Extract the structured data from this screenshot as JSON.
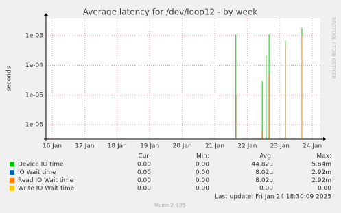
{
  "chart_data": {
    "type": "spike",
    "title": "Average latency for /dev/loop12 - by week",
    "y_label": "seconds",
    "side_label": "RRDTOOL / TOBI OETIKER",
    "footer": "Last update: Fri Jan 24 18:30:09 2025",
    "credit": "Munin 2.0.75",
    "log_scale": true,
    "grid": true,
    "xlim": [
      15.81,
      24.25
    ],
    "xticks": [
      {
        "value": 16,
        "label": "16 Jan"
      },
      {
        "value": 17,
        "label": "17 Jan"
      },
      {
        "value": 18,
        "label": "18 Jan"
      },
      {
        "value": 19,
        "label": "19 Jan"
      },
      {
        "value": 20,
        "label": "20 Jan"
      },
      {
        "value": 21,
        "label": "21 Jan"
      },
      {
        "value": 22,
        "label": "22 Jan"
      },
      {
        "value": 23,
        "label": "23 Jan"
      },
      {
        "value": 24,
        "label": "24 Jan"
      }
    ],
    "ylim": [
      3.3e-07,
      0.0038
    ],
    "yticks": [
      {
        "value": 1e-06,
        "label": "1e-06"
      },
      {
        "value": 1e-05,
        "label": "1e-05"
      },
      {
        "value": 0.0001,
        "label": "1e-04"
      },
      {
        "value": 0.001,
        "label": "1e-03"
      }
    ],
    "legend_headers": [
      "Cur:",
      "Min:",
      "Avg:",
      "Max:"
    ],
    "x": [
      21.65,
      22.46,
      22.58,
      22.67,
      23.17,
      23.68
    ],
    "series": [
      {
        "name": "Device IO time",
        "color": "#00cc00",
        "values": [
          0.0011,
          3e-05,
          0.00022,
          0.0011,
          0.0007,
          0.0018
        ],
        "stats": [
          "0.00",
          "0.00",
          "44.82u",
          "5.84m"
        ]
      },
      {
        "name": "IO Wait time",
        "color": "#0066b3",
        "values": [
          1e-05,
          6e-07,
          null,
          5e-05,
          0.0005,
          0.001
        ],
        "stats": [
          "0.00",
          "0.00",
          "8.02u",
          "2.92m"
        ]
      },
      {
        "name": "Read IO Wait time",
        "color": "#ff8000",
        "values": [
          1e-05,
          6e-07,
          null,
          5e-05,
          0.0005,
          0.001
        ],
        "stats": [
          "0.00",
          "0.00",
          "8.02u",
          "2.92m"
        ]
      },
      {
        "name": "Write IO Wait time",
        "color": "#ffcc00",
        "values": [
          null,
          null,
          null,
          null,
          null,
          null
        ],
        "stats": [
          "0.00",
          "0.00",
          "0.00",
          "0.00"
        ]
      }
    ]
  }
}
